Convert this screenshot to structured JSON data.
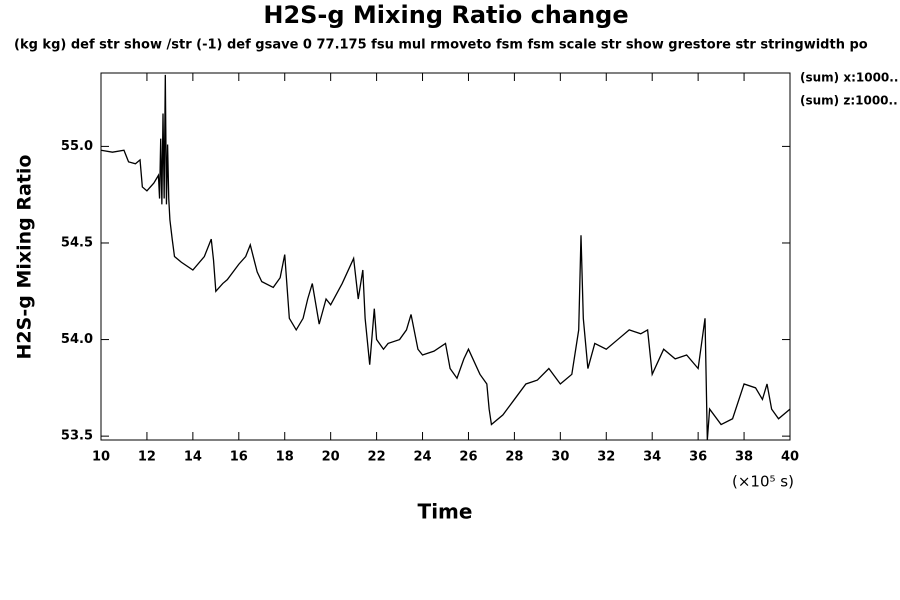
{
  "chart_data": {
    "type": "line",
    "title": "H2S-g Mixing Ratio change",
    "subtitle": "(kg kg) def str show /str (-1) def gsave 0 77.175 fsu mul rmoveto fsm fsm scale str show grestore str stringwidth po",
    "y_label": "H2S-g Mixing Ratio",
    "x_label": "Time",
    "x_unit": "(×10⁵ s)",
    "annotations": [
      "(sum) x:1000..",
      "(sum) z:1000.."
    ],
    "color": "#000000",
    "x": [
      10.0,
      10.5,
      11.0,
      11.2,
      11.5,
      11.7,
      11.8,
      12.0,
      12.3,
      12.5,
      12.55,
      12.6,
      12.65,
      12.7,
      12.75,
      12.8,
      12.85,
      12.9,
      12.95,
      13.0,
      13.1,
      13.2,
      13.5,
      14.0,
      14.5,
      14.8,
      14.9,
      15.0,
      15.3,
      15.5,
      16.0,
      16.3,
      16.5,
      16.8,
      17.0,
      17.5,
      17.8,
      18.0,
      18.2,
      18.5,
      18.8,
      19.0,
      19.2,
      19.5,
      19.8,
      20.0,
      20.5,
      21.0,
      21.2,
      21.4,
      21.5,
      21.7,
      21.9,
      22.0,
      22.3,
      22.5,
      23.0,
      23.3,
      23.5,
      23.8,
      24.0,
      24.5,
      25.0,
      25.2,
      25.5,
      25.8,
      26.0,
      26.5,
      26.8,
      26.9,
      27.0,
      27.5,
      28.0,
      28.5,
      29.0,
      29.5,
      30.0,
      30.5,
      30.8,
      30.9,
      31.0,
      31.2,
      31.5,
      32.0,
      32.5,
      33.0,
      33.5,
      33.8,
      34.0,
      34.5,
      35.0,
      35.5,
      36.0,
      36.3,
      36.4,
      36.5,
      37.0,
      37.5,
      38.0,
      38.5,
      38.8,
      39.0,
      39.2,
      39.5,
      40.0
    ],
    "values": [
      54.98,
      54.97,
      54.98,
      54.92,
      54.91,
      54.93,
      54.79,
      54.77,
      54.81,
      54.85,
      54.73,
      55.04,
      54.7,
      55.17,
      54.73,
      55.37,
      54.7,
      55.01,
      54.73,
      54.62,
      54.52,
      54.43,
      54.4,
      54.36,
      54.43,
      54.52,
      54.41,
      54.25,
      54.29,
      54.31,
      54.39,
      54.43,
      54.49,
      54.35,
      54.3,
      54.27,
      54.32,
      54.44,
      54.11,
      54.05,
      54.11,
      54.21,
      54.29,
      54.08,
      54.21,
      54.18,
      54.29,
      54.42,
      54.21,
      54.36,
      54.11,
      53.87,
      54.16,
      54.0,
      53.95,
      53.98,
      54.0,
      54.05,
      54.13,
      53.95,
      53.92,
      53.94,
      53.98,
      53.85,
      53.8,
      53.9,
      53.95,
      53.82,
      53.77,
      53.64,
      53.56,
      53.61,
      53.69,
      53.77,
      53.79,
      53.85,
      53.77,
      53.82,
      54.05,
      54.54,
      54.11,
      53.85,
      53.98,
      53.95,
      54.0,
      54.05,
      54.03,
      54.05,
      53.82,
      53.95,
      53.9,
      53.92,
      53.85,
      54.11,
      53.48,
      53.64,
      53.56,
      53.59,
      53.77,
      53.75,
      53.69,
      53.77,
      53.64,
      53.59,
      53.64
    ],
    "xlim": [
      10,
      40
    ],
    "ylim": [
      53.48,
      55.38
    ],
    "xticks": [
      10,
      12,
      14,
      16,
      18,
      20,
      22,
      24,
      26,
      28,
      30,
      32,
      34,
      36,
      38,
      40
    ],
    "yticks": [
      53.5,
      {
        "value": 54,
        "label": "54.0"
      },
      54.5,
      {
        "value": 55,
        "label": "55.0"
      }
    ]
  }
}
